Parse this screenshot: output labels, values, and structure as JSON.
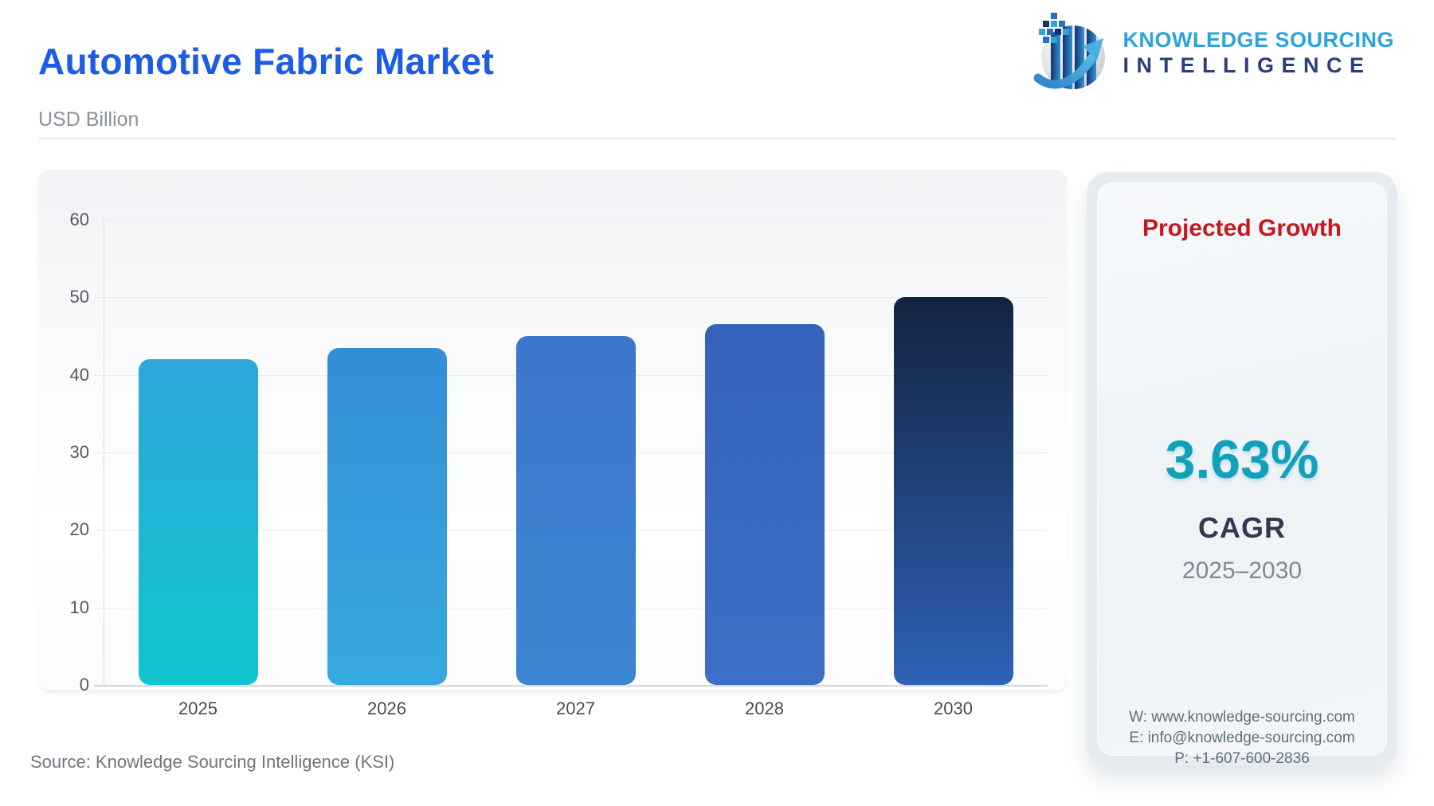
{
  "header": {
    "title": "Automotive Fabric Market",
    "subtitle": "USD Billion"
  },
  "logo": {
    "line1": "KNOWLEDGE SOURCING",
    "line2": "INTELLIGENCE"
  },
  "chart_data": {
    "type": "bar",
    "categories": [
      "2025",
      "2026",
      "2027",
      "2028",
      "2030"
    ],
    "values": [
      42,
      43.5,
      45,
      46.5,
      50
    ],
    "title": "Automotive Fabric Market",
    "xlabel": "",
    "ylabel": "USD Billion",
    "ylim": [
      0,
      60
    ],
    "yticks": [
      0,
      10,
      20,
      30,
      40,
      50,
      60
    ],
    "grid": true,
    "legend": "none",
    "bar_colors": [
      {
        "top": "#2ea7db",
        "bottom": "#0fc5ce"
      },
      {
        "top": "#338ed6",
        "bottom": "#36a9e0"
      },
      {
        "top": "#3b77cb",
        "bottom": "#3c86d3"
      },
      {
        "top": "#3562bb",
        "bottom": "#3d70c6"
      },
      {
        "top": "#132440",
        "bottom": "#2f62b8"
      }
    ]
  },
  "growth_card": {
    "title": "Projected Growth",
    "value": "3.63%",
    "label": "CAGR",
    "period": "2025–2030",
    "contact": {
      "website": "W: www.knowledge-sourcing.com",
      "email": "E: info@knowledge-sourcing.com",
      "phone": "P: +1-607-600-2836"
    }
  },
  "footer": {
    "source": "Source: Knowledge Sourcing Intelligence (KSI)"
  },
  "colors": {
    "title_blue": "#1d5ce6",
    "growth_red": "#c9161f",
    "growth_teal": "#13a0ba",
    "logo_light_blue": "#29a4dd",
    "logo_navy": "#2b3e7e"
  }
}
